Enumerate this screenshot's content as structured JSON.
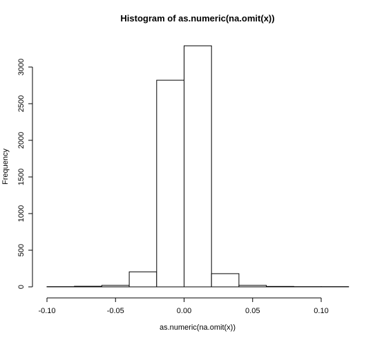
{
  "chart_data": {
    "type": "bar",
    "title": "Histogram of as.numeric(na.omit(x))",
    "xlabel": "as.numeric(na.omit(x))",
    "ylabel": "Frequency",
    "xlim": [
      -0.1,
      0.12
    ],
    "ylim": [
      0,
      3300
    ],
    "x_ticks": [
      -0.1,
      -0.05,
      0.0,
      0.05,
      0.1
    ],
    "x_tick_labels": [
      "-0.10",
      "-0.05",
      "0.00",
      "0.05",
      "0.10"
    ],
    "y_ticks": [
      0,
      500,
      1000,
      1500,
      2000,
      2500,
      3000
    ],
    "y_tick_labels": [
      "0",
      "500",
      "1000",
      "1500",
      "2000",
      "2500",
      "3000"
    ],
    "bins": [
      {
        "x0": -0.1,
        "x1": -0.08,
        "count": 3
      },
      {
        "x0": -0.08,
        "x1": -0.06,
        "count": 8
      },
      {
        "x0": -0.06,
        "x1": -0.04,
        "count": 20
      },
      {
        "x0": -0.04,
        "x1": -0.02,
        "count": 205
      },
      {
        "x0": -0.02,
        "x1": 0.0,
        "count": 2820
      },
      {
        "x0": 0.0,
        "x1": 0.02,
        "count": 3290
      },
      {
        "x0": 0.02,
        "x1": 0.04,
        "count": 180
      },
      {
        "x0": 0.04,
        "x1": 0.06,
        "count": 20
      },
      {
        "x0": 0.06,
        "x1": 0.08,
        "count": 6
      },
      {
        "x0": 0.08,
        "x1": 0.1,
        "count": 3
      },
      {
        "x0": 0.1,
        "x1": 0.12,
        "count": 3
      }
    ],
    "grid": false,
    "legend": "none"
  }
}
